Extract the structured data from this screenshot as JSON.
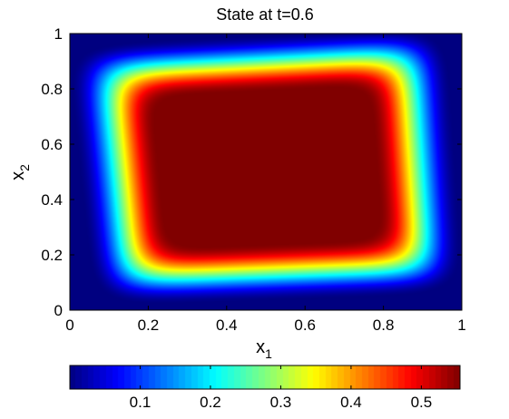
{
  "chart_data": {
    "type": "heatmap",
    "title": "State at t=0.6",
    "xlabel": {
      "base": "x",
      "subscript": "1"
    },
    "ylabel": {
      "base": "x",
      "subscript": "2"
    },
    "xlim": [
      0,
      1
    ],
    "ylim": [
      0,
      1
    ],
    "xticks": [
      0,
      0.2,
      0.4,
      0.6,
      0.8,
      1
    ],
    "xtick_labels": [
      "0",
      "0.2",
      "0.4",
      "0.6",
      "0.8",
      "1"
    ],
    "yticks": [
      0,
      0.2,
      0.4,
      0.6,
      0.8,
      1
    ],
    "ytick_labels": [
      "0",
      "0.2",
      "0.4",
      "0.6",
      "0.8",
      "1"
    ],
    "colormap": "jet",
    "color_range": [
      0,
      0.555
    ],
    "colorbar": {
      "orientation": "horizontal",
      "placement": "bottom",
      "ticks": [
        0.1,
        0.2,
        0.3,
        0.4,
        0.5
      ],
      "tick_labels": [
        "0.1",
        "0.2",
        "0.3",
        "0.4",
        "0.5"
      ]
    },
    "field_description": {
      "max_value": 0.555,
      "plateau_corners": [
        [
          0.12,
          0.08
        ],
        [
          0.94,
          0.12
        ],
        [
          0.9,
          0.96
        ],
        [
          0.06,
          0.9
        ]
      ],
      "zero_at_boundary": true
    }
  }
}
